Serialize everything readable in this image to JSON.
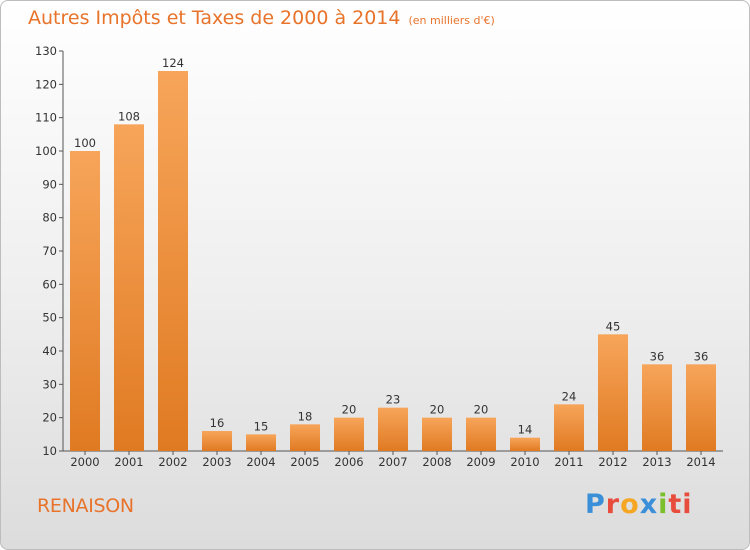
{
  "title": {
    "main": "Autres Impôts et Taxes de 2000 à 2014",
    "unit": "(en milliers d'€)"
  },
  "commune": "RENAISON",
  "brand": {
    "letters": [
      "P",
      "r",
      "o",
      "x",
      "i",
      "ti"
    ]
  },
  "colors": {
    "bar_light": "#f7a55a",
    "bar_dark": "#e07a22",
    "title": "#e8732a"
  },
  "chart_data": {
    "type": "bar",
    "title": "Autres Impôts et Taxes de 2000 à 2014",
    "subtitle": "(en milliers d'€)",
    "xlabel": "",
    "ylabel": "",
    "categories": [
      "2000",
      "2001",
      "2002",
      "2003",
      "2004",
      "2005",
      "2006",
      "2007",
      "2008",
      "2009",
      "2010",
      "2011",
      "2012",
      "2013",
      "2014"
    ],
    "values": [
      100,
      108,
      124,
      16,
      15,
      18,
      20,
      23,
      20,
      20,
      14,
      24,
      45,
      36,
      36
    ],
    "ylim": [
      10,
      130
    ],
    "yticks": [
      10,
      20,
      30,
      40,
      50,
      60,
      70,
      80,
      90,
      100,
      110,
      120,
      130
    ],
    "grid": false,
    "legend": "none"
  }
}
